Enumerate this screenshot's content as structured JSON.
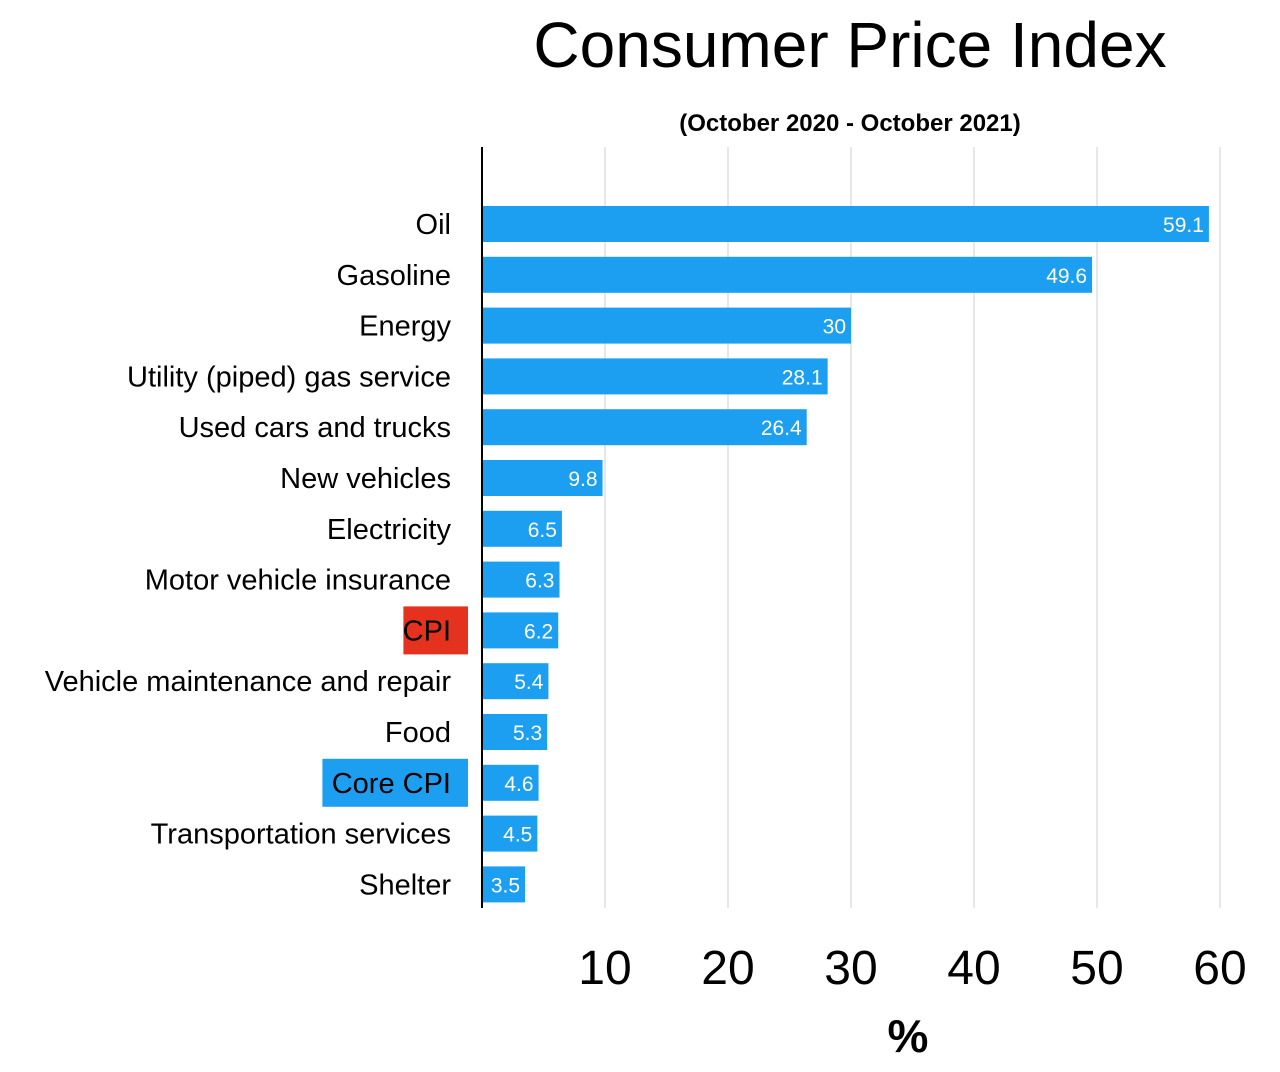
{
  "chart_data": {
    "type": "bar",
    "orientation": "horizontal",
    "title": "Consumer Price Index",
    "subtitle": "(October 2020 - October 2021)",
    "xlabel": "%",
    "ylabel": "",
    "xlim": [
      0,
      60
    ],
    "xticks": [
      "10",
      "20",
      "30",
      "40",
      "50",
      "60"
    ],
    "grid": true,
    "categories": [
      "Oil",
      "Gasoline",
      "Energy",
      "Utility (piped) gas service",
      "Used cars and trucks",
      "New vehicles",
      "Electricity",
      "Motor vehicle insurance",
      "CPI",
      "Vehicle maintenance and repair",
      "Food",
      "Core CPI",
      "Transportation services",
      "Shelter"
    ],
    "values": [
      59.1,
      49.6,
      30,
      28.1,
      26.4,
      9.8,
      6.5,
      6.3,
      6.2,
      5.4,
      5.3,
      4.6,
      4.5,
      3.5
    ],
    "value_labels": [
      "59.1",
      "49.6",
      "30",
      "28.1",
      "26.4",
      "9.8",
      "6.5",
      "6.3",
      "6.2",
      "5.4",
      "5.3",
      "4.6",
      "4.5",
      "3.5"
    ],
    "highlighted_labels": {
      "CPI": "#e5321f",
      "Core CPI": "#1c9ff0"
    },
    "colors": {
      "bar": "#1c9ff0",
      "grid": "#cfcfcf",
      "axis": "#000000",
      "bar_text": "#ffffff"
    }
  }
}
